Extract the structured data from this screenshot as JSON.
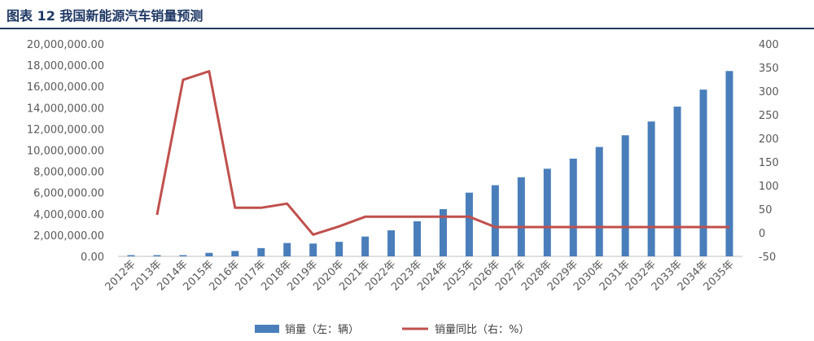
{
  "title": "图表 12 我国新能源汽车销量预测",
  "colors": {
    "bar": "#4a7ebb",
    "line": "#c0504d",
    "title": "#1f3864",
    "text": "#595959"
  },
  "chart_data": {
    "type": "bar",
    "categories": [
      "2012年",
      "2013年",
      "2014年",
      "2015年",
      "2016年",
      "2017年",
      "2018年",
      "2019年",
      "2020年",
      "2021年",
      "2022年",
      "2023年",
      "2024年",
      "2025年",
      "2026年",
      "2027年",
      "2028年",
      "2029年",
      "2030年",
      "2031年",
      "2032年",
      "2033年",
      "2034年",
      "2035年"
    ],
    "series": [
      {
        "name": "销量（左：辆）",
        "type": "bar",
        "axis": "left",
        "values": [
          12800,
          17600,
          74800,
          331100,
          507000,
          777000,
          1256000,
          1206000,
          1367000,
          1865000,
          2450000,
          3300000,
          4450000,
          6000000,
          6700000,
          7450000,
          8250000,
          9200000,
          10300000,
          11400000,
          12700000,
          14100000,
          15700000,
          17450000
        ]
      },
      {
        "name": "销量同比（右：%）",
        "type": "line",
        "axis": "right",
        "values": [
          null,
          37.9,
          324,
          342,
          53,
          53,
          61.7,
          -4,
          13.4,
          34,
          34,
          34,
          34,
          34,
          12,
          12,
          12,
          12,
          12,
          12,
          12,
          12,
          12,
          12
        ]
      }
    ],
    "y_left": {
      "min": 0,
      "max": 20000000,
      "step": 2000000,
      "tick_labels": [
        "0.00",
        "2,000,000.00",
        "4,000,000.00",
        "6,000,000.00",
        "8,000,000.00",
        "10,000,000.00",
        "12,000,000.00",
        "14,000,000.00",
        "16,000,000.00",
        "18,000,000.00",
        "20,000,000.00"
      ]
    },
    "y_right": {
      "min": -50,
      "max": 400,
      "step": 50,
      "tick_labels": [
        "-50",
        "0",
        "50",
        "100",
        "150",
        "200",
        "250",
        "300",
        "350",
        "400"
      ]
    },
    "legend": {
      "position": "bottom-center",
      "items": [
        "销量（左：辆）",
        "销量同比（右：%）"
      ]
    },
    "grid": false
  }
}
